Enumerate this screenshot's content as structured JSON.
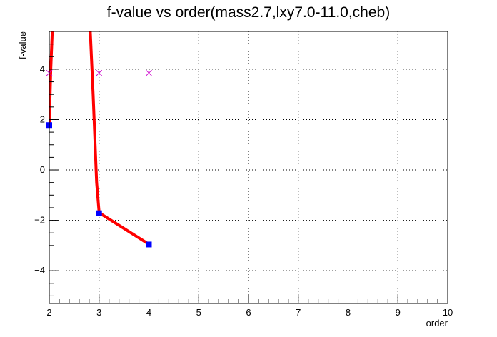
{
  "chart_data": {
    "type": "line",
    "title": "f-value vs order(mass2.7,lxy7.0-11.0,cheb)",
    "xlabel": "order",
    "ylabel": "f-value",
    "xlim": [
      2,
      10
    ],
    "ylim": [
      -5.3,
      5.5
    ],
    "x_ticks": [
      2,
      3,
      4,
      5,
      6,
      7,
      8,
      9,
      10
    ],
    "y_ticks": [
      -4,
      -2,
      0,
      2,
      4
    ],
    "grid": true,
    "legend": "none",
    "series": [
      {
        "kind": "smooth-curve",
        "color": "#ff0000",
        "x": [
          2.0,
          2.03,
          2.08,
          2.8,
          2.88,
          2.95,
          3.0,
          4.0
        ],
        "y": [
          1.8,
          4.0,
          6.5,
          6.5,
          3.0,
          -0.5,
          -1.7,
          -2.95
        ]
      },
      {
        "kind": "markers-square",
        "color": "#0000ff",
        "x": [
          2,
          3,
          4
        ],
        "y": [
          1.78,
          -1.72,
          -2.96
        ]
      },
      {
        "kind": "markers-cross",
        "color": "#cc00cc",
        "x": [
          2,
          3,
          4
        ],
        "y": [
          3.85,
          3.85,
          3.85
        ]
      }
    ]
  }
}
